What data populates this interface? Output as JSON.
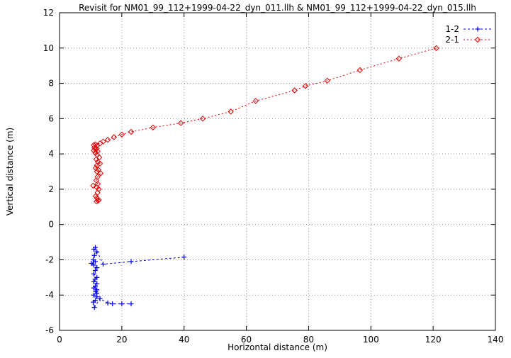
{
  "title": "Revisit for NM01_99_112+1999-04-22_dyn_011.llh & NM01_99_112+1999-04-22_dyn_015.llh",
  "chart_data": {
    "type": "scatter",
    "title": "Revisit for NM01_99_112+1999-04-22_dyn_011.llh & NM01_99_112+1999-04-22_dyn_015.llh",
    "xlabel": "Horizontal distance (m)",
    "ylabel": "Vertical distance (m)",
    "xlim": [
      0,
      140
    ],
    "ylim": [
      -6,
      12
    ],
    "xticks": [
      0,
      20,
      40,
      60,
      80,
      100,
      120,
      140
    ],
    "yticks": [
      -6,
      -4,
      -2,
      0,
      2,
      4,
      6,
      8,
      10,
      12
    ],
    "grid": true,
    "legend_position": "top-right",
    "series": [
      {
        "name": "1-2",
        "color": "#0000dd",
        "marker": "plus",
        "points": [
          [
            40,
            -1.85
          ],
          [
            23,
            -2.1
          ],
          [
            14,
            -2.25
          ],
          [
            11.5,
            -1.3
          ],
          [
            11,
            -1.4
          ],
          [
            12,
            -1.55
          ],
          [
            11.2,
            -1.75
          ],
          [
            10.8,
            -2.0
          ],
          [
            11.5,
            -2.1
          ],
          [
            10.2,
            -2.2
          ],
          [
            11,
            -2.3
          ],
          [
            12,
            -2.45
          ],
          [
            11.5,
            -2.6
          ],
          [
            11,
            -2.8
          ],
          [
            12,
            -3.0
          ],
          [
            11.4,
            -3.1
          ],
          [
            11,
            -3.25
          ],
          [
            12,
            -3.35
          ],
          [
            11.5,
            -3.5
          ],
          [
            11,
            -3.6
          ],
          [
            12,
            -3.7
          ],
          [
            11.6,
            -3.8
          ],
          [
            12,
            -3.9
          ],
          [
            11,
            -4.0
          ],
          [
            12,
            -4.1
          ],
          [
            11.5,
            -4.3
          ],
          [
            10.8,
            -4.4
          ],
          [
            11.2,
            -4.7
          ],
          [
            13,
            -4.2
          ],
          [
            15.5,
            -4.45
          ],
          [
            17,
            -4.5
          ],
          [
            20,
            -4.5
          ],
          [
            23,
            -4.5
          ]
        ]
      },
      {
        "name": "2-1",
        "color": "#dd0000",
        "marker": "diamond",
        "points": [
          [
            121,
            10.0
          ],
          [
            109,
            9.4
          ],
          [
            96.5,
            8.75
          ],
          [
            86,
            8.15
          ],
          [
            79,
            7.85
          ],
          [
            75.5,
            7.6
          ],
          [
            63,
            7.0
          ],
          [
            55,
            6.4
          ],
          [
            46,
            6.0
          ],
          [
            39,
            5.75
          ],
          [
            30,
            5.5
          ],
          [
            23,
            5.25
          ],
          [
            20,
            5.1
          ],
          [
            17.5,
            4.95
          ],
          [
            15.5,
            4.8
          ],
          [
            14,
            4.7
          ],
          [
            13,
            4.6
          ],
          [
            11.5,
            4.55
          ],
          [
            11,
            4.5
          ],
          [
            12,
            4.45
          ],
          [
            11.2,
            4.35
          ],
          [
            11.9,
            4.3
          ],
          [
            11,
            4.2
          ],
          [
            12.2,
            4.15
          ],
          [
            11.5,
            4.05
          ],
          [
            12,
            3.95
          ],
          [
            12.8,
            3.8
          ],
          [
            11.8,
            3.7
          ],
          [
            12.3,
            3.55
          ],
          [
            13,
            3.45
          ],
          [
            12,
            3.35
          ],
          [
            11.6,
            3.2
          ],
          [
            12.5,
            3.1
          ],
          [
            12,
            3.0
          ],
          [
            13.2,
            2.9
          ],
          [
            12.2,
            2.7
          ],
          [
            11.8,
            2.5
          ],
          [
            12.3,
            2.3
          ],
          [
            10.8,
            2.2
          ],
          [
            12,
            2.1
          ],
          [
            12.6,
            2.0
          ],
          [
            12.2,
            1.8
          ],
          [
            11.6,
            1.6
          ],
          [
            12,
            1.5
          ],
          [
            12.6,
            1.4
          ],
          [
            11.9,
            1.3
          ],
          [
            12.4,
            1.35
          ]
        ]
      }
    ]
  }
}
